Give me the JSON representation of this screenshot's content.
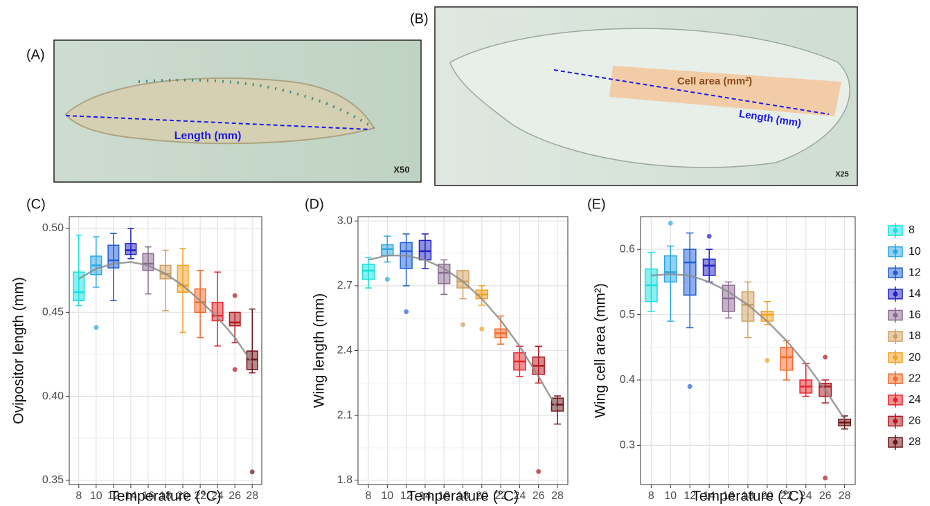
{
  "photos": [
    {
      "label": "(A)",
      "annotations": [
        "Length (mm)"
      ],
      "magnification": "X50"
    },
    {
      "label": "(B)",
      "annotations": [
        "Cell area (mm²)",
        "Length (mm)"
      ],
      "magnification": "X25"
    }
  ],
  "legend": "right",
  "chart_data": [
    {
      "type": "box",
      "panel": "(C)",
      "x_label": "Temperature (°C)",
      "y_label": "Ovipositor length (mm)",
      "categories": [
        "8",
        "10",
        "12",
        "14",
        "16",
        "18",
        "20",
        "22",
        "24",
        "26",
        "28"
      ],
      "colors": [
        "#19e0e0",
        "#2aa6e6",
        "#1f5ed6",
        "#2020c4",
        "#8a6a90",
        "#cfa060",
        "#f5a020",
        "#f26a2a",
        "#e8232a",
        "#b0181e",
        "#6e1418"
      ],
      "low": [
        0.454,
        0.465,
        0.457,
        0.482,
        0.461,
        0.451,
        0.438,
        0.435,
        0.43,
        0.432,
        0.414
      ],
      "q1": [
        0.457,
        0.4725,
        0.4765,
        0.4845,
        0.475,
        0.47,
        0.462,
        0.45,
        0.445,
        0.442,
        0.416
      ],
      "median": [
        0.462,
        0.478,
        0.481,
        0.487,
        0.479,
        0.473,
        0.466,
        0.456,
        0.448,
        0.444,
        0.422
      ],
      "q3": [
        0.474,
        0.4835,
        0.49,
        0.491,
        0.485,
        0.478,
        0.478,
        0.464,
        0.456,
        0.45,
        0.427
      ],
      "high": [
        0.496,
        0.495,
        0.497,
        0.5,
        0.489,
        0.487,
        0.488,
        0.475,
        0.474,
        0.45,
        0.452
      ],
      "fit": [
        0.47,
        0.476,
        0.479,
        0.48,
        0.478,
        0.473,
        0.466,
        0.457,
        0.447,
        0.435,
        0.42
      ],
      "outliers": {
        "x": [
          "10",
          "26",
          "26",
          "28"
        ],
        "values": [
          0.441,
          0.46,
          0.416,
          0.355
        ]
      },
      "ylim": [
        0.3475,
        0.507
      ],
      "yticks": [
        {
          "value": 0.35,
          "label": "0.35"
        },
        {
          "value": 0.4,
          "label": "0.40"
        },
        {
          "value": 0.45,
          "label": "0.45"
        },
        {
          "value": 0.5,
          "label": "0.50"
        }
      ],
      "grid": true,
      "minor_grid": true
    },
    {
      "type": "box",
      "panel": "(D)",
      "x_label": "Temperature (°C)",
      "y_label": "Wing length (mm)",
      "categories": [
        "8",
        "10",
        "12",
        "14",
        "16",
        "18",
        "20",
        "22",
        "24",
        "26",
        "28"
      ],
      "colors": [
        "#19e0e0",
        "#2aa6e6",
        "#1f5ed6",
        "#2020c4",
        "#8a6a90",
        "#cfa060",
        "#f5a020",
        "#f26a2a",
        "#e8232a",
        "#b0181e",
        "#6e1418"
      ],
      "low": [
        2.69,
        2.81,
        2.7,
        2.78,
        2.66,
        2.64,
        2.61,
        2.43,
        2.28,
        2.25,
        2.06
      ],
      "q1": [
        2.73,
        2.84,
        2.78,
        2.82,
        2.71,
        2.69,
        2.64,
        2.46,
        2.31,
        2.29,
        2.12
      ],
      "median": [
        2.77,
        2.87,
        2.86,
        2.86,
        2.76,
        2.72,
        2.66,
        2.48,
        2.35,
        2.33,
        2.15
      ],
      "q3": [
        2.8,
        2.89,
        2.9,
        2.91,
        2.8,
        2.77,
        2.68,
        2.5,
        2.39,
        2.37,
        2.18
      ],
      "high": [
        2.83,
        2.93,
        2.94,
        2.94,
        2.82,
        2.77,
        2.7,
        2.56,
        2.42,
        2.42,
        2.19
      ],
      "fit": [
        2.82,
        2.84,
        2.84,
        2.82,
        2.78,
        2.72,
        2.64,
        2.54,
        2.42,
        2.28,
        2.13
      ],
      "outliers": {
        "x": [
          "10",
          "12",
          "18",
          "20",
          "26"
        ],
        "values": [
          2.73,
          2.58,
          2.52,
          2.5,
          1.84
        ]
      },
      "ylim": [
        1.78,
        3.02
      ],
      "yticks": [
        {
          "value": 1.8,
          "label": "1.8"
        },
        {
          "value": 2.1,
          "label": "2.1"
        },
        {
          "value": 2.4,
          "label": "2.4"
        },
        {
          "value": 2.7,
          "label": "2.7"
        },
        {
          "value": 3,
          "label": "3.0"
        }
      ],
      "grid": true,
      "minor_grid": true
    },
    {
      "type": "box",
      "panel": "(E)",
      "x_label": "Temperature (°C)",
      "y_label": "Wing cell area (mm²)",
      "categories": [
        "8",
        "10",
        "12",
        "14",
        "16",
        "18",
        "20",
        "22",
        "24",
        "26",
        "28"
      ],
      "colors": [
        "#19e0e0",
        "#2aa6e6",
        "#1f5ed6",
        "#2020c4",
        "#8a6a90",
        "#cfa060",
        "#f5a020",
        "#f26a2a",
        "#e8232a",
        "#b0181e",
        "#6e1418"
      ],
      "low": [
        0.505,
        0.49,
        0.48,
        0.55,
        0.495,
        0.465,
        0.485,
        0.4,
        0.375,
        0.365,
        0.325
      ],
      "q1": [
        0.52,
        0.55,
        0.53,
        0.56,
        0.505,
        0.49,
        0.49,
        0.415,
        0.38,
        0.375,
        0.33
      ],
      "median": [
        0.545,
        0.565,
        0.58,
        0.575,
        0.525,
        0.515,
        0.5,
        0.435,
        0.39,
        0.39,
        0.335
      ],
      "q3": [
        0.57,
        0.59,
        0.6,
        0.585,
        0.545,
        0.535,
        0.505,
        0.45,
        0.4,
        0.395,
        0.34
      ],
      "high": [
        0.595,
        0.605,
        0.625,
        0.6,
        0.55,
        0.55,
        0.52,
        0.46,
        0.425,
        0.4,
        0.345
      ],
      "fit": [
        0.56,
        0.562,
        0.56,
        0.55,
        0.535,
        0.515,
        0.49,
        0.46,
        0.425,
        0.385,
        0.34
      ],
      "outliers": {
        "x": [
          "10",
          "12",
          "14",
          "20",
          "26",
          "26"
        ],
        "values": [
          0.64,
          0.39,
          0.62,
          0.43,
          0.435,
          0.25
        ]
      },
      "ylim": [
        0.24,
        0.65
      ],
      "yticks": [
        0.3,
        0.4,
        0.5,
        0.6
      ],
      "grid": true,
      "minor_grid": true
    }
  ]
}
